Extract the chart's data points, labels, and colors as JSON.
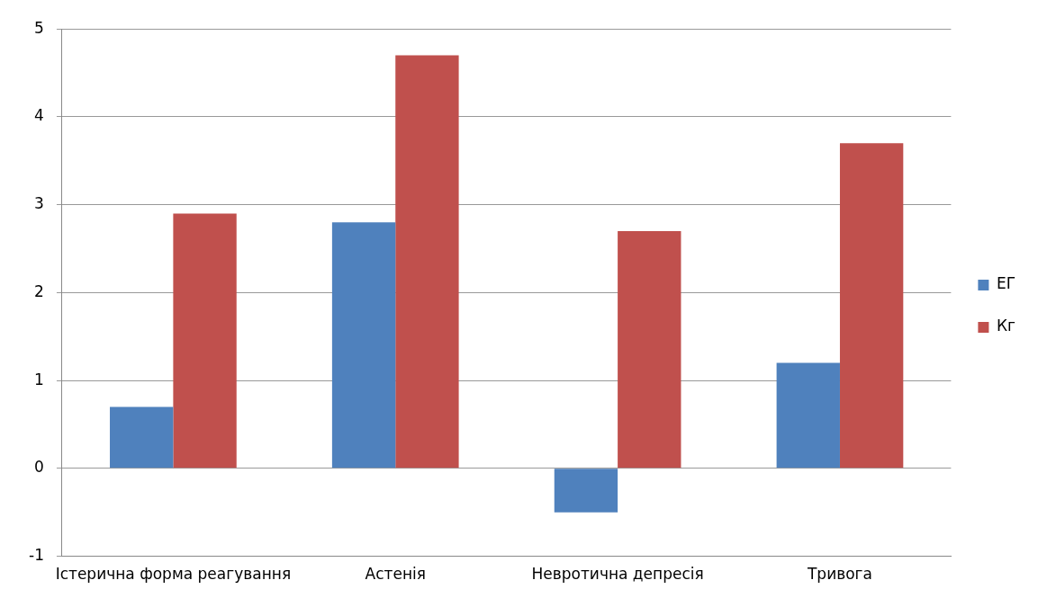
{
  "chart_data": {
    "type": "bar",
    "categories": [
      "Істерична форма реагування",
      "Астенія",
      "Невротична депресія",
      "Тривога"
    ],
    "series": [
      {
        "name": "ЕГ",
        "color": "#4f81bd",
        "values": [
          0.7,
          2.8,
          -0.5,
          1.2
        ]
      },
      {
        "name": "Кг",
        "color": "#c0504d",
        "values": [
          2.9,
          4.7,
          2.7,
          3.7
        ]
      }
    ],
    "ylim": [
      -1,
      5
    ],
    "yticks": [
      -1,
      0,
      1,
      2,
      3,
      4,
      5
    ],
    "grid": "y",
    "legend": "right"
  }
}
